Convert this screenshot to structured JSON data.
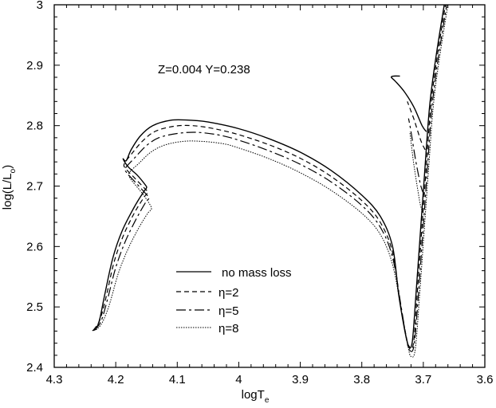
{
  "chart_data": {
    "type": "line",
    "title": "",
    "xlabel": "logT",
    "xlabel_sub": "e",
    "ylabel": "log(L/L",
    "ylabel_sub": "o",
    "ylabel_close": ")",
    "xlim": [
      4.3,
      3.6
    ],
    "ylim": [
      2.4,
      3.0
    ],
    "x_ticks": [
      4.3,
      4.2,
      4.1,
      4.0,
      3.9,
      3.8,
      3.7,
      3.6
    ],
    "x_tick_labels": [
      "4.3",
      "4.2",
      "4.1",
      "4",
      "3.9",
      "3.8",
      "3.7",
      "3.6"
    ],
    "y_ticks": [
      2.4,
      2.5,
      2.6,
      2.7,
      2.8,
      2.9,
      3.0
    ],
    "y_tick_labels": [
      "2.4",
      "2.5",
      "2.6",
      "2.7",
      "2.8",
      "2.9",
      "3"
    ],
    "x_minor_step": 0.02,
    "y_minor_step": 0.02,
    "grid": false,
    "annotation": "Z=0.004 Y=0.238",
    "legend_position": "bottom-center",
    "series": [
      {
        "name": "no mass loss",
        "legend_label": "no mass loss",
        "style": "solid",
        "points": [
          [
            4.238,
            2.461
          ],
          [
            4.232,
            2.464
          ],
          [
            4.226,
            2.48
          ],
          [
            4.218,
            2.52
          ],
          [
            4.205,
            2.58
          ],
          [
            4.19,
            2.625
          ],
          [
            4.17,
            2.665
          ],
          [
            4.155,
            2.69
          ],
          [
            4.15,
            2.697
          ],
          [
            4.152,
            2.702
          ],
          [
            4.165,
            2.718
          ],
          [
            4.18,
            2.732
          ],
          [
            4.188,
            2.745
          ],
          [
            4.183,
            2.742
          ],
          [
            4.175,
            2.76
          ],
          [
            4.16,
            2.783
          ],
          [
            4.14,
            2.8
          ],
          [
            4.11,
            2.809
          ],
          [
            4.08,
            2.809
          ],
          [
            4.05,
            2.806
          ],
          [
            4.0,
            2.795
          ],
          [
            3.95,
            2.778
          ],
          [
            3.9,
            2.756
          ],
          [
            3.85,
            2.726
          ],
          [
            3.8,
            2.685
          ],
          [
            3.77,
            2.65
          ],
          [
            3.75,
            2.6
          ],
          [
            3.74,
            2.52
          ],
          [
            3.73,
            2.46
          ],
          [
            3.724,
            2.436
          ],
          [
            3.718,
            2.442
          ],
          [
            3.712,
            2.52
          ],
          [
            3.705,
            2.62
          ],
          [
            3.698,
            2.72
          ],
          [
            3.69,
            2.83
          ],
          [
            3.68,
            2.91
          ],
          [
            3.666,
            3.0
          ]
        ],
        "loop": [
          [
            3.695,
            2.79
          ],
          [
            3.702,
            2.8
          ],
          [
            3.715,
            2.83
          ],
          [
            3.73,
            2.855
          ],
          [
            3.745,
            2.873
          ],
          [
            3.752,
            2.88
          ],
          [
            3.748,
            2.882
          ],
          [
            3.738,
            2.882
          ]
        ]
      },
      {
        "name": "η=2",
        "legend_label": "η=2",
        "style": "dashed",
        "points": [
          [
            4.236,
            2.462
          ],
          [
            4.226,
            2.478
          ],
          [
            4.216,
            2.515
          ],
          [
            4.203,
            2.573
          ],
          [
            4.188,
            2.617
          ],
          [
            4.17,
            2.655
          ],
          [
            4.155,
            2.68
          ],
          [
            4.148,
            2.69
          ],
          [
            4.152,
            2.695
          ],
          [
            4.168,
            2.712
          ],
          [
            4.183,
            2.728
          ],
          [
            4.186,
            2.737
          ],
          [
            4.172,
            2.756
          ],
          [
            4.155,
            2.776
          ],
          [
            4.135,
            2.791
          ],
          [
            4.105,
            2.799
          ],
          [
            4.075,
            2.8
          ],
          [
            4.04,
            2.795
          ],
          [
            4.0,
            2.785
          ],
          [
            3.95,
            2.768
          ],
          [
            3.9,
            2.746
          ],
          [
            3.85,
            2.716
          ],
          [
            3.8,
            2.676
          ],
          [
            3.77,
            2.64
          ],
          [
            3.75,
            2.59
          ],
          [
            3.738,
            2.51
          ],
          [
            3.728,
            2.452
          ],
          [
            3.723,
            2.432
          ],
          [
            3.716,
            2.44
          ],
          [
            3.71,
            2.52
          ],
          [
            3.703,
            2.62
          ],
          [
            3.696,
            2.72
          ],
          [
            3.688,
            2.83
          ],
          [
            3.678,
            2.91
          ],
          [
            3.664,
            3.0
          ]
        ],
        "loop": [
          [
            3.697,
            2.76
          ],
          [
            3.704,
            2.775
          ],
          [
            3.715,
            2.81
          ],
          [
            3.723,
            2.832
          ],
          [
            3.726,
            2.84
          ]
        ]
      },
      {
        "name": "η=5",
        "legend_label": "η=5",
        "style": "dashdot",
        "points": [
          [
            4.234,
            2.462
          ],
          [
            4.224,
            2.476
          ],
          [
            4.214,
            2.51
          ],
          [
            4.2,
            2.565
          ],
          [
            4.185,
            2.607
          ],
          [
            4.168,
            2.643
          ],
          [
            4.152,
            2.672
          ],
          [
            4.146,
            2.68
          ],
          [
            4.15,
            2.686
          ],
          [
            4.166,
            2.704
          ],
          [
            4.182,
            2.722
          ],
          [
            4.184,
            2.73
          ],
          [
            4.168,
            2.748
          ],
          [
            4.15,
            2.767
          ],
          [
            4.13,
            2.78
          ],
          [
            4.1,
            2.787
          ],
          [
            4.07,
            2.789
          ],
          [
            4.035,
            2.785
          ],
          [
            4.0,
            2.776
          ],
          [
            3.95,
            2.758
          ],
          [
            3.9,
            2.736
          ],
          [
            3.85,
            2.707
          ],
          [
            3.8,
            2.668
          ],
          [
            3.77,
            2.632
          ],
          [
            3.75,
            2.582
          ],
          [
            3.736,
            2.5
          ],
          [
            3.727,
            2.445
          ],
          [
            3.722,
            2.428
          ],
          [
            3.715,
            2.437
          ],
          [
            3.708,
            2.52
          ],
          [
            3.701,
            2.62
          ],
          [
            3.694,
            2.72
          ],
          [
            3.686,
            2.83
          ],
          [
            3.676,
            2.91
          ],
          [
            3.662,
            3.0
          ]
        ],
        "loop": [
          [
            3.699,
            2.686
          ],
          [
            3.704,
            2.7
          ],
          [
            3.712,
            2.74
          ],
          [
            3.72,
            2.79
          ],
          [
            3.724,
            2.812
          ]
        ]
      },
      {
        "name": "η=8",
        "legend_label": "η=8",
        "style": "dotted",
        "points": [
          [
            4.232,
            2.462
          ],
          [
            4.222,
            2.474
          ],
          [
            4.21,
            2.505
          ],
          [
            4.196,
            2.555
          ],
          [
            4.18,
            2.596
          ],
          [
            4.163,
            2.63
          ],
          [
            4.148,
            2.655
          ],
          [
            4.142,
            2.662
          ],
          [
            4.146,
            2.672
          ],
          [
            4.16,
            2.692
          ],
          [
            4.176,
            2.712
          ],
          [
            4.178,
            2.722
          ],
          [
            4.162,
            2.738
          ],
          [
            4.143,
            2.756
          ],
          [
            4.12,
            2.768
          ],
          [
            4.09,
            2.774
          ],
          [
            4.06,
            2.774
          ],
          [
            4.025,
            2.77
          ],
          [
            4.0,
            2.763
          ],
          [
            3.95,
            2.745
          ],
          [
            3.9,
            2.722
          ],
          [
            3.85,
            2.693
          ],
          [
            3.8,
            2.655
          ],
          [
            3.77,
            2.62
          ],
          [
            3.75,
            2.57
          ],
          [
            3.735,
            2.49
          ],
          [
            3.725,
            2.435
          ],
          [
            3.72,
            2.418
          ],
          [
            3.713,
            2.43
          ],
          [
            3.706,
            2.52
          ],
          [
            3.699,
            2.62
          ],
          [
            3.692,
            2.72
          ],
          [
            3.684,
            2.83
          ],
          [
            3.674,
            2.91
          ],
          [
            3.66,
            3.0
          ]
        ],
        "loop": [
          [
            3.701,
            2.657
          ],
          [
            3.705,
            2.67
          ],
          [
            3.71,
            2.7
          ],
          [
            3.716,
            2.74
          ],
          [
            3.722,
            2.79
          ]
        ]
      }
    ]
  }
}
